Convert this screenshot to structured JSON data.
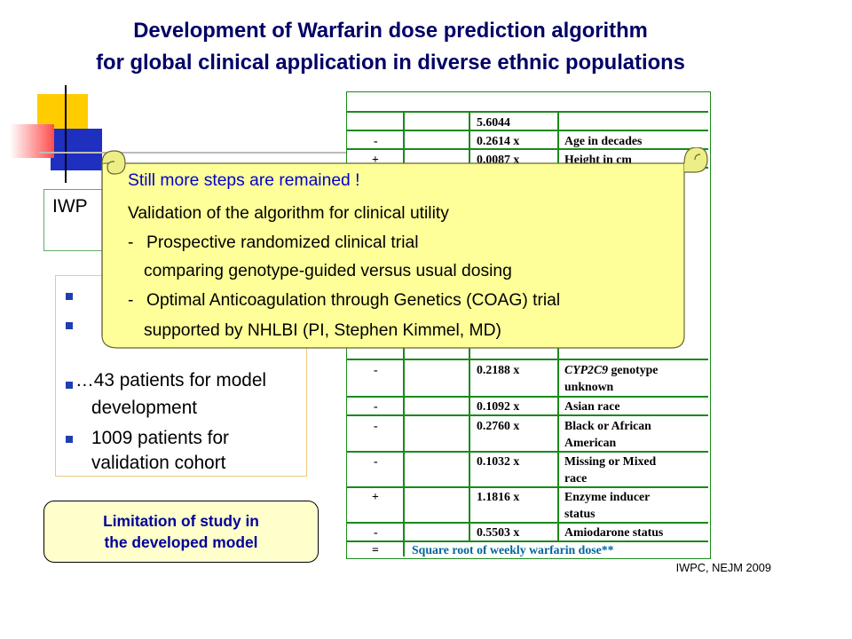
{
  "slide": {
    "title_line1": "Development of Warfarin dose prediction algorithm",
    "title_line2": "for global clinical application in diverse ethnic populations",
    "footer": "IWPC, NEJM 2009"
  },
  "iwpc_box": {
    "text": "IWP"
  },
  "bullets": [
    {
      "lines": [
        ""
      ]
    },
    {
      "lines": [
        "",
        ""
      ]
    },
    {
      "lines": [
        "…43 patients for model",
        "development"
      ]
    },
    {
      "lines": [
        "1009 patients for",
        "validation cohort"
      ]
    }
  ],
  "limitation_box": {
    "line1": "Limitation of study in",
    "line2": "the developed model"
  },
  "equation_table": {
    "rows": [
      {
        "op": "",
        "coef": "5.6044",
        "term": ""
      },
      {
        "op": "-",
        "coef": "0.2614  x",
        "term": "Age in decades"
      },
      {
        "op": "+",
        "coef": "0.0087  x",
        "term": "Height in cm"
      }
    ],
    "rows_bottom": [
      {
        "op": "-",
        "coef": "0.2188 x",
        "term_italic": "CYP2C9",
        "term": " genotype",
        "term2": "unknown"
      },
      {
        "op": "-",
        "coef": "0.1092  x",
        "term": "Asian race"
      },
      {
        "op": "-",
        "coef": "0.2760  x",
        "term": "Black or African",
        "term2": "American"
      },
      {
        "op": "-",
        "coef": "0.1032  x",
        "term": "Missing or Mixed",
        "term2": "race"
      },
      {
        "op": "+",
        "coef": "1.1816  x",
        "term": "Enzyme inducer",
        "term2": "status"
      },
      {
        "op": "-",
        "coef": "0.5503  x",
        "term": "Amiodarone status"
      }
    ],
    "result": {
      "op": "=",
      "text": "Square root of weekly warfarin dose**"
    }
  },
  "callout": {
    "line1": "Still more steps are remained !",
    "line2": "Validation of the algorithm for clinical utility",
    "line3_dash": "-",
    "line3": "Prospective randomized clinical trial",
    "line4": "comparing genotype-guided versus usual dosing",
    "line5_dash": "-",
    "line5": "Optimal Anticoagulation through Genetics (COAG) trial",
    "line6": "supported by NHLBI (PI, Stephen Kimmel, MD)"
  },
  "colors": {
    "title": "#000066",
    "scroll_fill": "#ffff99",
    "table_border": "#1a8a1a",
    "highlight_blue": "#0000cc",
    "result_text": "#006699"
  }
}
